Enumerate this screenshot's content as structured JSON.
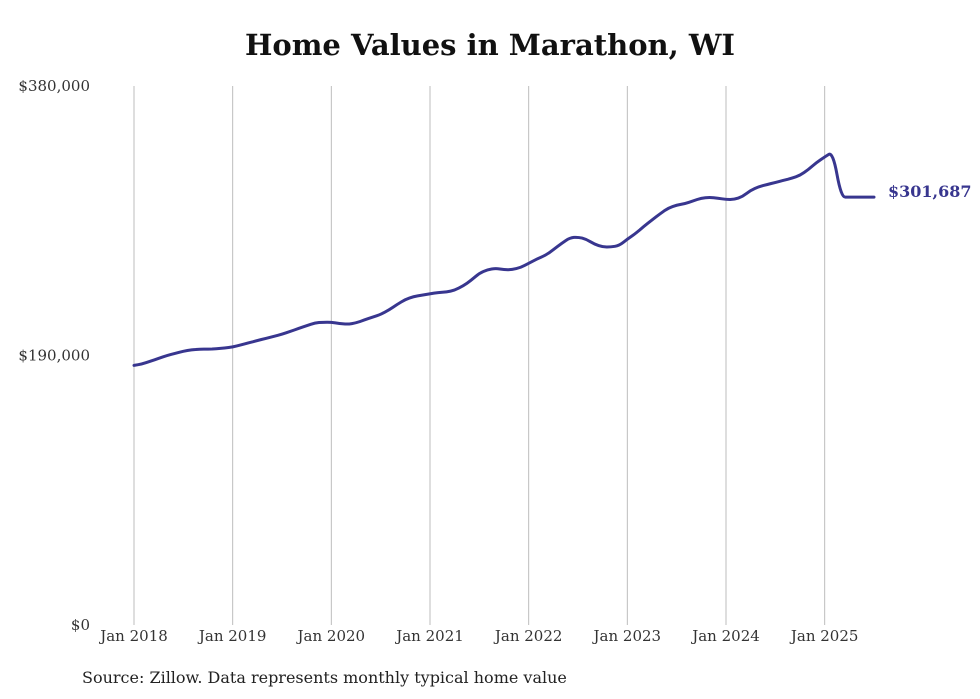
{
  "title": "Home Values in Marathon, WI",
  "source": "Source: Zillow. Data represents monthly typical home value",
  "chart_data": {
    "type": "line",
    "title": "Home Values in Marathon, WI",
    "xlabel": "",
    "ylabel": "",
    "ylim": [
      0,
      380000
    ],
    "y_ticks": [
      {
        "value": 0,
        "label": "$0"
      },
      {
        "value": 190000,
        "label": "$190,000"
      },
      {
        "value": 380000,
        "label": "$380,000"
      }
    ],
    "x_ticks": [
      {
        "value": 2018.0,
        "label": "Jan 2018"
      },
      {
        "value": 2019.0,
        "label": "Jan 2019"
      },
      {
        "value": 2020.0,
        "label": "Jan 2020"
      },
      {
        "value": 2021.0,
        "label": "Jan 2021"
      },
      {
        "value": 2022.0,
        "label": "Jan 2022"
      },
      {
        "value": 2023.0,
        "label": "Jan 2023"
      },
      {
        "value": 2024.0,
        "label": "Jan 2024"
      },
      {
        "value": 2025.0,
        "label": "Jan 2025"
      }
    ],
    "xlim": [
      2018.0,
      2025.5
    ],
    "grid": "vertical",
    "line_color": "#38368f",
    "end_label": "$301,687",
    "series": [
      {
        "x": [
          2018.0,
          2018.083,
          2018.167,
          2018.25,
          2018.333,
          2018.417,
          2018.5,
          2018.583,
          2018.667,
          2018.75,
          2018.833,
          2018.917,
          2019.0,
          2019.083,
          2019.167,
          2019.25,
          2019.333,
          2019.417,
          2019.5,
          2019.583,
          2019.667,
          2019.75,
          2019.833,
          2019.917,
          2020.0,
          2020.083,
          2020.167,
          2020.25,
          2020.333,
          2020.417,
          2020.5,
          2020.583,
          2020.667,
          2020.75,
          2020.833,
          2020.917,
          2021.0,
          2021.083,
          2021.167,
          2021.25,
          2021.333,
          2021.417,
          2021.5,
          2021.583,
          2021.667,
          2021.75,
          2021.833,
          2021.917,
          2022.0,
          2022.083,
          2022.167,
          2022.25,
          2022.333,
          2022.417,
          2022.5,
          2022.583,
          2022.667,
          2022.75,
          2022.833,
          2022.917,
          2023.0,
          2023.083,
          2023.167,
          2023.25,
          2023.333,
          2023.417,
          2023.5,
          2023.583,
          2023.667,
          2023.75,
          2023.833,
          2023.917,
          2024.0,
          2024.083,
          2024.167,
          2024.25,
          2024.333,
          2024.417,
          2024.5,
          2024.583,
          2024.667,
          2024.75,
          2024.833,
          2024.917,
          2025.0,
          2025.083,
          2025.167,
          2025.25,
          2025.333,
          2025.417,
          2025.5
        ],
        "y": [
          183000,
          184000,
          186000,
          188000,
          190000,
          191500,
          193000,
          194000,
          194500,
          194500,
          194700,
          195300,
          196000,
          197500,
          199000,
          200500,
          202000,
          203500,
          205000,
          207000,
          209000,
          211000,
          213000,
          213500,
          213500,
          212500,
          212000,
          213000,
          215000,
          217000,
          219000,
          222000,
          226000,
          229500,
          231500,
          232500,
          233500,
          234500,
          234800,
          236000,
          239000,
          243000,
          248000,
          250500,
          251500,
          250500,
          250500,
          252000,
          255000,
          258000,
          260500,
          264500,
          269000,
          273000,
          273500,
          272000,
          268500,
          266500,
          266500,
          267500,
          272000,
          276000,
          281000,
          285500,
          290000,
          294000,
          296000,
          297000,
          299000,
          301000,
          301500,
          301000,
          300000,
          300000,
          302000,
          306500,
          309000,
          310500,
          312000,
          313500,
          315000,
          317000,
          321000,
          326000,
          330000,
          333500,
          301687,
          301687,
          301687,
          301687,
          301687
        ]
      }
    ]
  }
}
